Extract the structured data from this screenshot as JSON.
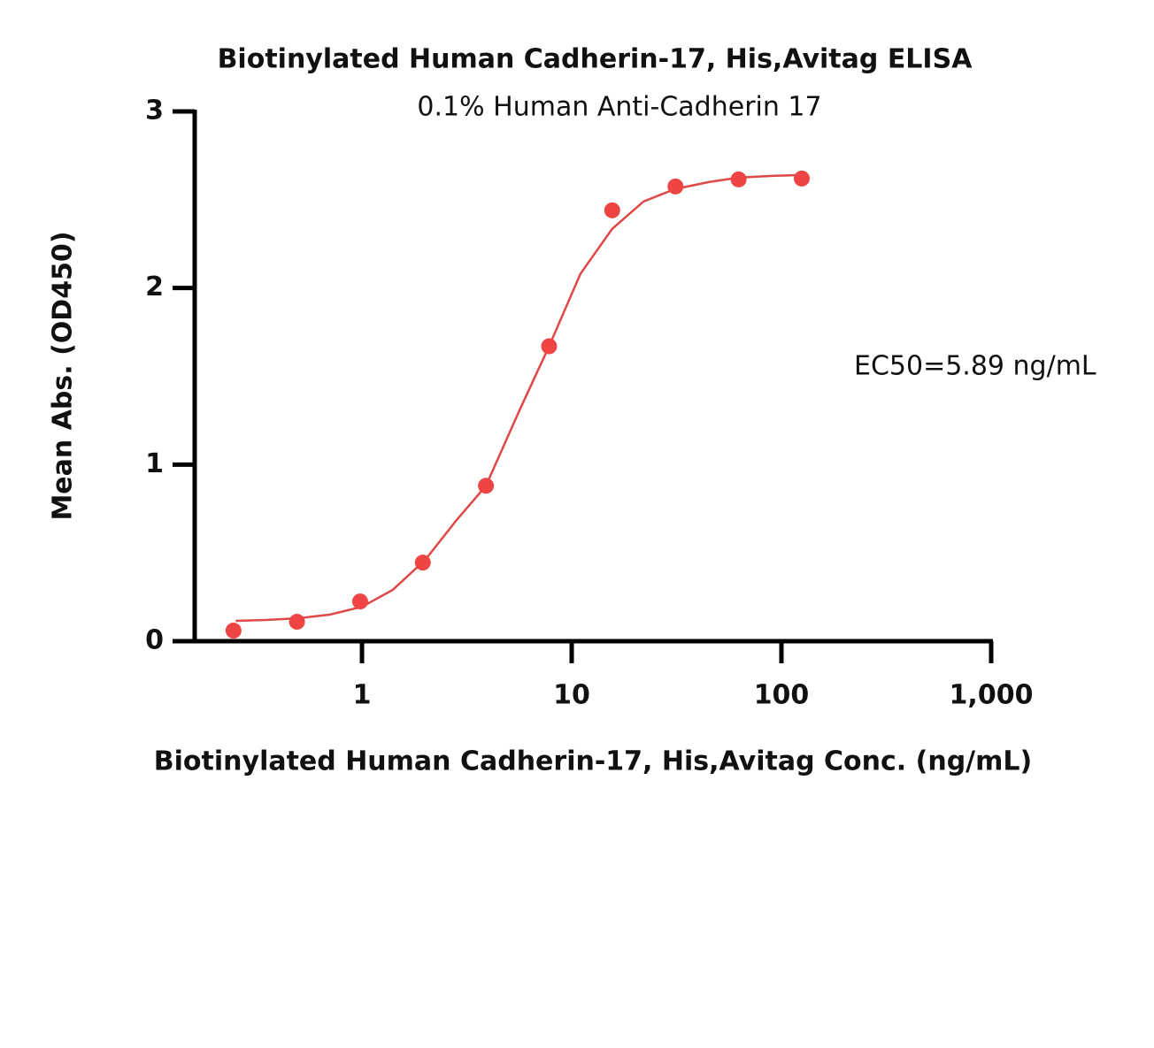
{
  "chart_data": {
    "type": "scatter",
    "title": "Biotinylated Human Cadherin-17, His,Avitag ELISA",
    "subtitle": "0.1% Human Anti-Cadherin 17",
    "annotation": "EC50=5.89 ng/mL",
    "x_label": "Biotinylated Human Cadherin-17, His,Avitag Conc. (ng/mL)",
    "y_label": "Mean Abs. (OD450)",
    "x_scale": "log",
    "x": [
      0.244,
      0.49,
      0.98,
      1.95,
      3.9,
      7.8,
      15.6,
      31.25,
      62.5,
      125
    ],
    "values": [
      0.06,
      0.11,
      0.225,
      0.445,
      0.88,
      1.67,
      2.44,
      2.575,
      2.615,
      2.62
    ],
    "color": "#ef4444",
    "fit": {
      "color": "#e04848",
      "x": [
        0.25,
        0.35,
        0.5,
        0.7,
        1,
        1.4,
        2,
        2.8,
        3.9,
        5.6,
        7.8,
        11,
        15.6,
        22,
        31,
        45,
        62,
        90,
        125
      ],
      "values": [
        0.115,
        0.12,
        0.13,
        0.15,
        0.195,
        0.29,
        0.46,
        0.68,
        0.88,
        1.3,
        1.67,
        2.08,
        2.335,
        2.49,
        2.56,
        2.6,
        2.625,
        2.635,
        2.64
      ]
    },
    "xlim": [
      0.125,
      1000
    ],
    "ylim": [
      0,
      3
    ],
    "xticks": [
      1,
      10,
      100,
      {
        "value": 1000,
        "label": "1,000"
      }
    ],
    "yticks": [
      0,
      1,
      2,
      3
    ]
  }
}
